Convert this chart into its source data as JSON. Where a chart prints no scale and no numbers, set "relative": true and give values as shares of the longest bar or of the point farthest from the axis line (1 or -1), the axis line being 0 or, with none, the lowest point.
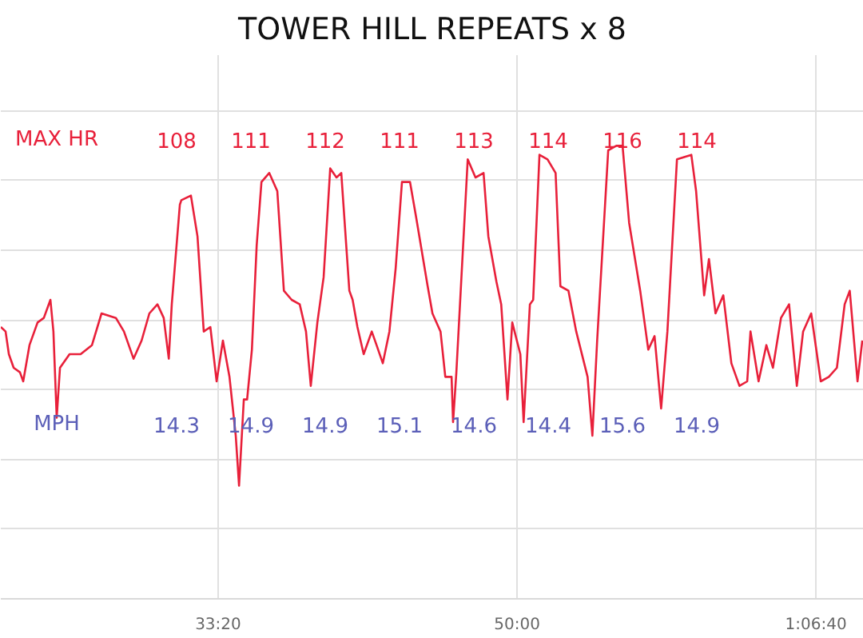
{
  "chart_data": {
    "type": "line",
    "title": "TOWER HILL REPEATS x 8",
    "relative": true,
    "grid": true,
    "xlim": [
      1273,
      4160
    ],
    "xticks": [
      {
        "value": 2000,
        "label": "33:20"
      },
      {
        "value": 3000,
        "label": "50:00"
      },
      {
        "value": 4000,
        "label": "1:06:40"
      }
    ],
    "series": [
      {
        "color": "#e8203a",
        "x": [
          1273,
          1289,
          1300,
          1316,
          1337,
          1348,
          1369,
          1396,
          1417,
          1439,
          1449,
          1460,
          1471,
          1503,
          1540,
          1578,
          1610,
          1658,
          1685,
          1717,
          1744,
          1770,
          1797,
          1818,
          1835,
          1845,
          1872,
          1877,
          1909,
          1931,
          1952,
          1974,
          1995,
          2016,
          2038,
          2059,
          2070,
          2086,
          2097,
          2113,
          2129,
          2145,
          2171,
          2198,
          2220,
          2246,
          2273,
          2294,
          2310,
          2332,
          2353,
          2375,
          2396,
          2412,
          2439,
          2450,
          2466,
          2487,
          2514,
          2530,
          2551,
          2573,
          2594,
          2615,
          2642,
          2663,
          2701,
          2717,
          2744,
          2760,
          2781,
          2786,
          2797,
          2835,
          2861,
          2888,
          2904,
          2931,
          2947,
          2968,
          2984,
          3011,
          3022,
          3043,
          3054,
          3075,
          3102,
          3129,
          3145,
          3172,
          3198,
          3236,
          3252,
          3268,
          3305,
          3332,
          3353,
          3375,
          3412,
          3439,
          3460,
          3482,
          3503,
          3535,
          3583,
          3599,
          3626,
          3642,
          3664,
          3690,
          3717,
          3744,
          3770,
          3781,
          3808,
          3834,
          3856,
          3883,
          3910,
          3936,
          3957,
          3984,
          4016,
          4043,
          4070,
          4096,
          4113,
          4139,
          4155
        ],
        "values": [
          0.6,
          0.59,
          0.54,
          0.51,
          0.5,
          0.48,
          0.56,
          0.61,
          0.62,
          0.66,
          0.59,
          0.4,
          0.51,
          0.54,
          0.54,
          0.56,
          0.63,
          0.62,
          0.59,
          0.53,
          0.57,
          0.63,
          0.65,
          0.62,
          0.53,
          0.65,
          0.87,
          0.88,
          0.89,
          0.8,
          0.59,
          0.6,
          0.48,
          0.57,
          0.49,
          0.36,
          0.25,
          0.44,
          0.44,
          0.55,
          0.78,
          0.92,
          0.94,
          0.9,
          0.68,
          0.66,
          0.65,
          0.59,
          0.47,
          0.61,
          0.71,
          0.95,
          0.93,
          0.94,
          0.68,
          0.66,
          0.6,
          0.54,
          0.59,
          0.56,
          0.52,
          0.59,
          0.73,
          0.92,
          0.92,
          0.84,
          0.69,
          0.63,
          0.59,
          0.49,
          0.49,
          0.39,
          0.5,
          0.97,
          0.93,
          0.94,
          0.8,
          0.7,
          0.65,
          0.44,
          0.61,
          0.54,
          0.39,
          0.65,
          0.66,
          0.98,
          0.97,
          0.94,
          0.69,
          0.68,
          0.59,
          0.49,
          0.36,
          0.57,
          0.99,
          1.0,
          1.0,
          0.83,
          0.68,
          0.55,
          0.58,
          0.42,
          0.59,
          0.97,
          0.98,
          0.9,
          0.67,
          0.75,
          0.63,
          0.67,
          0.52,
          0.47,
          0.48,
          0.59,
          0.48,
          0.56,
          0.51,
          0.62,
          0.65,
          0.47,
          0.59,
          0.63,
          0.48,
          0.49,
          0.51,
          0.65,
          0.68,
          0.48,
          0.57
        ]
      }
    ],
    "annotations": [
      "MAX HR",
      "108",
      "111",
      "112",
      "111",
      "113",
      "114",
      "116",
      "114",
      "MPH",
      "14.3",
      "14.9",
      "14.9",
      "15.1",
      "14.6",
      "14.4",
      "15.6",
      "14.9"
    ]
  }
}
